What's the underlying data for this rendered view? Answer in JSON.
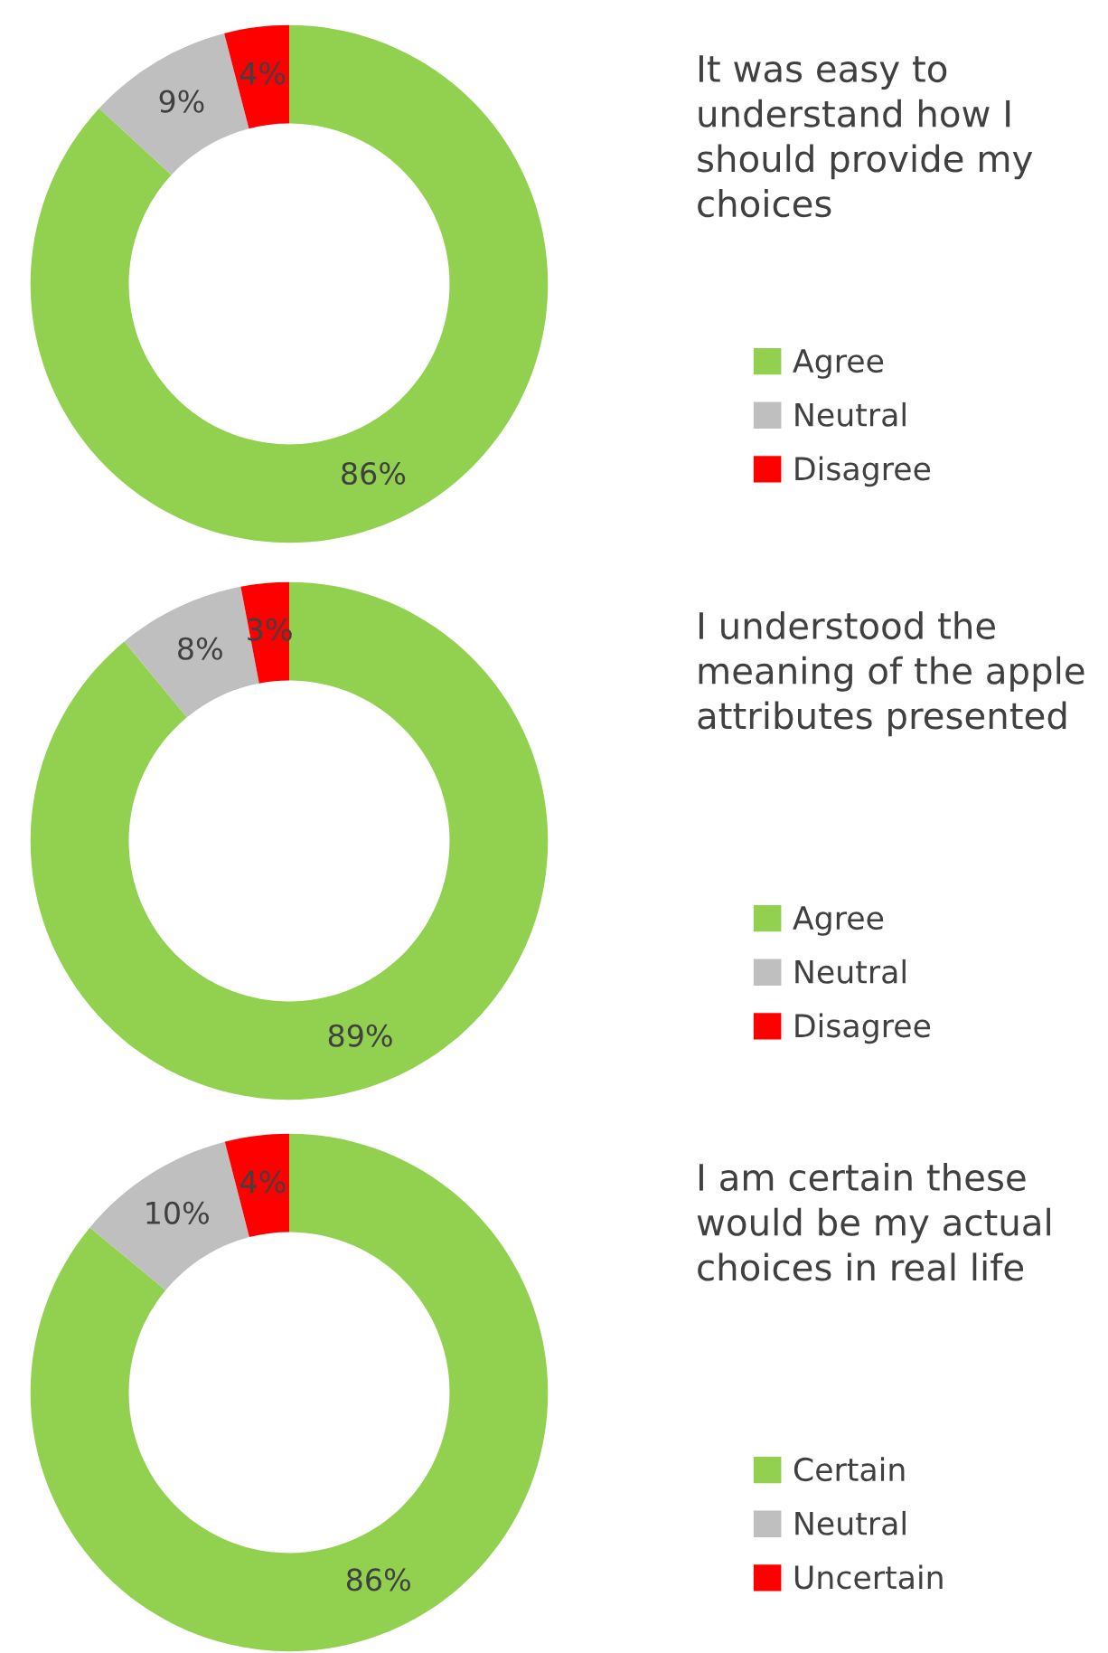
{
  "chart_data": [
    {
      "type": "donut",
      "title": "It was easy to understand how I should provide my choices",
      "categories": [
        "Agree",
        "Neutral",
        "Disagree"
      ],
      "values": [
        86,
        9,
        4
      ],
      "colors": [
        "#92d050",
        "#bfbfbf",
        "#ff0000"
      ],
      "value_labels": [
        "86%",
        "9%",
        "4%"
      ],
      "legend": "right"
    },
    {
      "type": "donut",
      "title": "I understood the meaning of the apple attributes presented",
      "categories": [
        "Agree",
        "Neutral",
        "Disagree"
      ],
      "values": [
        89,
        8,
        3
      ],
      "colors": [
        "#92d050",
        "#bfbfbf",
        "#ff0000"
      ],
      "value_labels": [
        "89%",
        "8%",
        "3%"
      ],
      "legend": "right"
    },
    {
      "type": "donut",
      "title": "I am certain these would be my actual choices in real life",
      "categories": [
        "Certain",
        "Neutral",
        "Uncertain"
      ],
      "values": [
        86,
        10,
        4
      ],
      "colors": [
        "#92d050",
        "#bfbfbf",
        "#ff0000"
      ],
      "value_labels": [
        "86%",
        "10%",
        "4%"
      ],
      "legend": "right"
    }
  ]
}
